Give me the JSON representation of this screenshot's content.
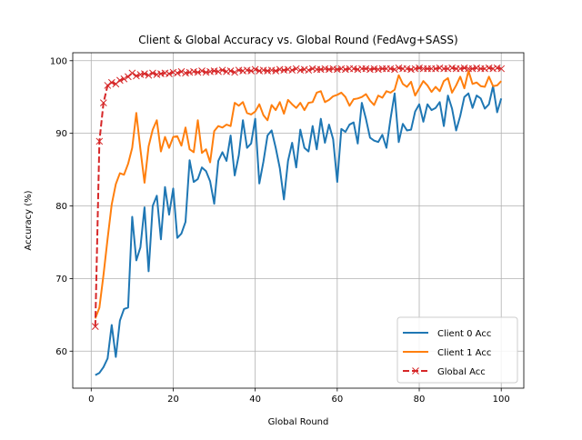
{
  "chart_data": {
    "type": "line",
    "title": "Client & Global Accuracy vs. Global Round (FedAvg+SASS)",
    "xlabel": "Global Round",
    "ylabel": "Accuracy (%)",
    "xlim": [
      -4.5,
      105.5
    ],
    "ylim": [
      54.9,
      101.1
    ],
    "xticks": [
      0,
      20,
      40,
      60,
      80,
      100
    ],
    "yticks": [
      60,
      70,
      80,
      90,
      100
    ],
    "grid": true,
    "legend_position": "lower-right",
    "colors": {
      "client0": "#1f77b4",
      "client1": "#ff7f0e",
      "global": "#d62728"
    },
    "series": [
      {
        "name": "Client 0 Acc",
        "x": [
          1,
          2,
          3,
          4,
          5,
          6,
          7,
          8,
          9,
          10,
          11,
          12,
          13,
          14,
          15,
          16,
          17,
          18,
          19,
          20,
          21,
          22,
          23,
          24,
          25,
          26,
          27,
          28,
          29,
          30,
          31,
          32,
          33,
          34,
          35,
          36,
          37,
          38,
          39,
          40,
          41,
          42,
          43,
          44,
          45,
          46,
          47,
          48,
          49,
          50,
          51,
          52,
          53,
          54,
          55,
          56,
          57,
          58,
          59,
          60,
          61,
          62,
          63,
          64,
          65,
          66,
          67,
          68,
          69,
          70,
          71,
          72,
          73,
          74,
          75,
          76,
          77,
          78,
          79,
          80,
          81,
          82,
          83,
          84,
          85,
          86,
          87,
          88,
          89,
          90,
          91,
          92,
          93,
          94,
          95,
          96,
          97,
          98,
          99,
          100
        ],
        "values": [
          56.7,
          57.0,
          57.8,
          59.0,
          63.6,
          59.2,
          64.2,
          65.8,
          66.0,
          78.5,
          72.5,
          74.3,
          79.8,
          71.0,
          80.0,
          81.4,
          75.4,
          82.6,
          78.8,
          82.4,
          75.6,
          76.2,
          77.8,
          86.3,
          83.3,
          83.7,
          85.3,
          84.8,
          83.4,
          80.3,
          86.2,
          87.4,
          86.2,
          89.7,
          84.2,
          87.0,
          91.8,
          88.0,
          88.6,
          92.0,
          83.1,
          86.1,
          89.7,
          90.4,
          88.0,
          85.2,
          80.9,
          86.2,
          88.7,
          85.3,
          90.5,
          88.0,
          87.5,
          91.0,
          87.8,
          92.0,
          88.7,
          91.2,
          89.2,
          83.3,
          90.6,
          90.2,
          91.2,
          91.5,
          88.6,
          94.2,
          92.0,
          89.4,
          89.0,
          88.8,
          89.8,
          88.0,
          92.0,
          95.5,
          88.8,
          91.3,
          90.4,
          90.5,
          93.0,
          94.0,
          91.6,
          94.0,
          93.2,
          93.5,
          94.3,
          91.0,
          95.2,
          93.4,
          90.4,
          92.4,
          95.0,
          95.5,
          93.5,
          95.2,
          94.8,
          93.4,
          94.0,
          96.5,
          92.9,
          94.8
        ]
      },
      {
        "name": "Client 1 Acc",
        "x": [
          1,
          2,
          3,
          4,
          5,
          6,
          7,
          8,
          9,
          10,
          11,
          12,
          13,
          14,
          15,
          16,
          17,
          18,
          19,
          20,
          21,
          22,
          23,
          24,
          25,
          26,
          27,
          28,
          29,
          30,
          31,
          32,
          33,
          34,
          35,
          36,
          37,
          38,
          39,
          40,
          41,
          42,
          43,
          44,
          45,
          46,
          47,
          48,
          49,
          50,
          51,
          52,
          53,
          54,
          55,
          56,
          57,
          58,
          59,
          60,
          61,
          62,
          63,
          64,
          65,
          66,
          67,
          68,
          69,
          70,
          71,
          72,
          73,
          74,
          75,
          76,
          77,
          78,
          79,
          80,
          81,
          82,
          83,
          84,
          85,
          86,
          87,
          88,
          89,
          90,
          91,
          92,
          93,
          94,
          95,
          96,
          97,
          98,
          99,
          100
        ],
        "values": [
          64.5,
          66.0,
          70.5,
          75.5,
          80.2,
          83.0,
          84.5,
          84.3,
          85.8,
          88.0,
          92.8,
          87.8,
          83.2,
          88.2,
          90.5,
          91.8,
          87.5,
          89.5,
          88.0,
          89.5,
          89.6,
          88.3,
          90.8,
          87.8,
          87.4,
          91.8,
          87.3,
          87.8,
          86.0,
          90.3,
          91.0,
          90.8,
          91.2,
          91.0,
          94.2,
          93.8,
          94.3,
          92.8,
          92.6,
          93.0,
          94.0,
          92.5,
          91.8,
          93.9,
          93.2,
          94.3,
          92.7,
          94.6,
          94.0,
          93.5,
          94.2,
          93.2,
          94.2,
          94.3,
          95.6,
          95.8,
          94.3,
          94.6,
          95.1,
          95.3,
          95.6,
          95.0,
          93.8,
          94.7,
          94.8,
          95.0,
          95.4,
          94.5,
          93.9,
          95.2,
          94.9,
          95.8,
          95.6,
          96.0,
          98.0,
          96.8,
          96.4,
          97.1,
          95.2,
          96.2,
          97.2,
          96.6,
          95.7,
          96.4,
          95.8,
          97.2,
          97.6,
          95.6,
          96.6,
          97.8,
          96.2,
          98.6,
          96.8,
          97.0,
          96.5,
          96.4,
          97.8,
          96.5,
          96.6,
          97.2
        ]
      },
      {
        "name": "Global Acc",
        "x": [
          1,
          2,
          3,
          4,
          5,
          6,
          7,
          8,
          9,
          10,
          11,
          12,
          13,
          14,
          15,
          16,
          17,
          18,
          19,
          20,
          21,
          22,
          23,
          24,
          25,
          26,
          27,
          28,
          29,
          30,
          31,
          32,
          33,
          34,
          35,
          36,
          37,
          38,
          39,
          40,
          41,
          42,
          43,
          44,
          45,
          46,
          47,
          48,
          49,
          50,
          51,
          52,
          53,
          54,
          55,
          56,
          57,
          58,
          59,
          60,
          61,
          62,
          63,
          64,
          65,
          66,
          67,
          68,
          69,
          70,
          71,
          72,
          73,
          74,
          75,
          76,
          77,
          78,
          79,
          80,
          81,
          82,
          83,
          84,
          85,
          86,
          87,
          88,
          89,
          90,
          91,
          92,
          93,
          94,
          95,
          96,
          97,
          98,
          99,
          100
        ],
        "values": [
          63.4,
          88.9,
          94.2,
          96.6,
          97.0,
          96.8,
          97.3,
          97.5,
          97.8,
          98.3,
          97.9,
          98.1,
          98.2,
          98.0,
          98.3,
          98.1,
          98.2,
          98.3,
          98.2,
          98.4,
          98.3,
          98.5,
          98.3,
          98.4,
          98.5,
          98.4,
          98.6,
          98.4,
          98.5,
          98.6,
          98.5,
          98.7,
          98.5,
          98.6,
          98.4,
          98.7,
          98.6,
          98.7,
          98.6,
          98.8,
          98.6,
          98.7,
          98.6,
          98.7,
          98.6,
          98.8,
          98.7,
          98.8,
          98.7,
          98.9,
          98.7,
          98.8,
          98.7,
          98.9,
          98.8,
          98.8,
          98.9,
          98.8,
          98.9,
          98.8,
          98.9,
          98.8,
          98.9,
          98.9,
          98.8,
          98.9,
          98.9,
          98.8,
          98.9,
          98.8,
          98.9,
          98.9,
          98.9,
          98.8,
          99.0,
          98.9,
          98.9,
          98.8,
          98.9,
          99.0,
          98.9,
          98.9,
          98.9,
          98.9,
          99.0,
          98.9,
          98.9,
          99.0,
          98.9,
          98.9,
          99.0,
          98.9,
          98.9,
          99.0,
          98.9,
          98.9,
          99.0,
          98.9,
          99.0,
          98.9
        ]
      }
    ]
  }
}
